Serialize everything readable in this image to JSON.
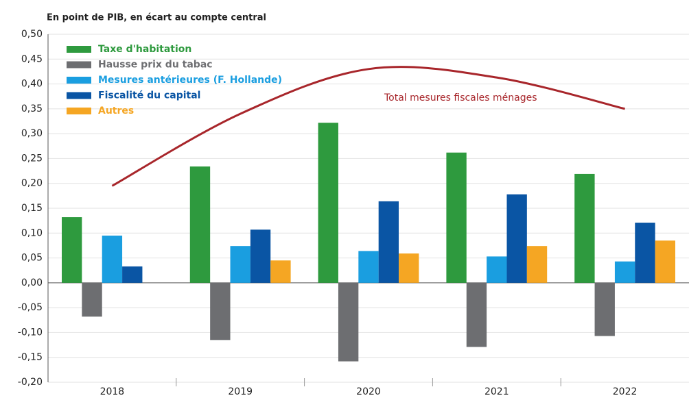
{
  "chart_data": {
    "type": "bar",
    "title": "En point de PIB, en écart au compte central",
    "categories": [
      "2018",
      "2019",
      "2020",
      "2021",
      "2022"
    ],
    "series": [
      {
        "name": "Taxe d'habitation",
        "color": "#2e9a3e",
        "values": [
          0.132,
          0.234,
          0.322,
          0.262,
          0.219
        ]
      },
      {
        "name": "Hausse prix du tabac",
        "color": "#6d6e71",
        "values": [
          -0.068,
          -0.115,
          -0.158,
          -0.129,
          -0.107
        ]
      },
      {
        "name": "Mesures antérieures (F. Hollande)",
        "color": "#1a9ee0",
        "values": [
          0.095,
          0.074,
          0.064,
          0.053,
          0.043
        ]
      },
      {
        "name": "Fiscalité du capital",
        "color": "#0a55a4",
        "values": [
          0.033,
          0.107,
          0.164,
          0.178,
          0.121
        ]
      },
      {
        "name": "Autres",
        "color": "#f5a623",
        "values": [
          null,
          0.045,
          0.059,
          0.074,
          0.085
        ]
      }
    ],
    "line": {
      "name": "Total mesures fiscales ménages",
      "color": "#a8262b",
      "values": [
        0.195,
        0.34,
        0.43,
        0.413,
        0.35
      ]
    },
    "ylim": [
      -0.2,
      0.5
    ],
    "yticks": [
      {
        "value": -0.2,
        "label": "-0,20"
      },
      {
        "value": -0.15,
        "label": "-0,15"
      },
      {
        "value": -0.1,
        "label": "-0,10"
      },
      {
        "value": -0.05,
        "label": "-0,05"
      },
      {
        "value": 0,
        "label": "0,00"
      },
      {
        "value": 0.05,
        "label": "0,05"
      },
      {
        "value": 0.1,
        "label": "0,10"
      },
      {
        "value": 0.15,
        "label": "0,15"
      },
      {
        "value": 0.2,
        "label": "0,20"
      },
      {
        "value": 0.25,
        "label": "0,25"
      },
      {
        "value": 0.3,
        "label": "0,30"
      },
      {
        "value": 0.35,
        "label": "0,35"
      },
      {
        "value": 0.4,
        "label": "0,40"
      },
      {
        "value": 0.45,
        "label": "0,45"
      },
      {
        "value": 0.5,
        "label": "0,50"
      }
    ],
    "grid": true
  }
}
